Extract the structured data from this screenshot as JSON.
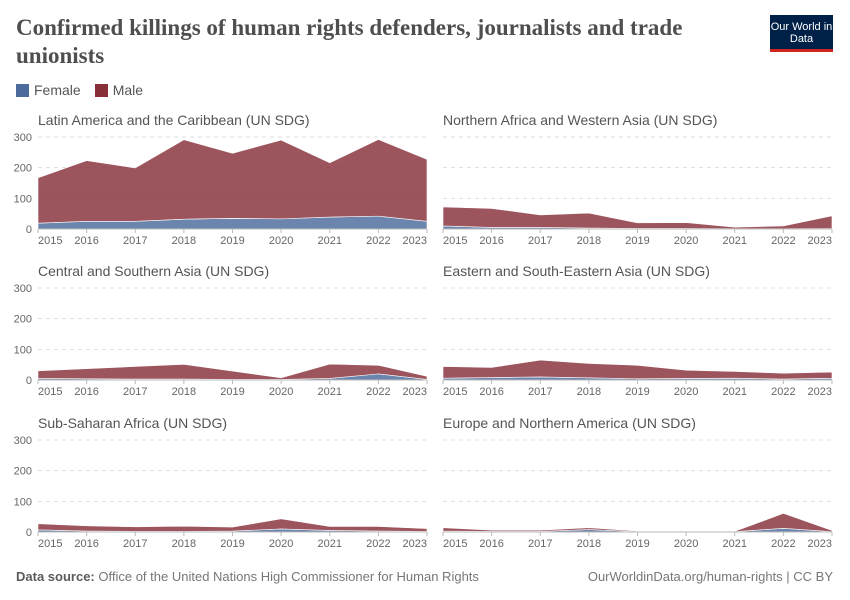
{
  "header": {
    "title": "Confirmed killings of human rights defenders, journalists and trade unionists",
    "logo_text": "Our World in Data"
  },
  "legend": [
    {
      "label": "Female",
      "color": "#4C6A9C"
    },
    {
      "label": "Male",
      "color": "#883039"
    }
  ],
  "footer": {
    "source_label": "Data source:",
    "source": "Office of the United Nations High Commissioner for Human Rights",
    "link": "OurWorldinData.org/human-rights | CC BY"
  },
  "chart_data": {
    "type": "area",
    "stacked": true,
    "x": [
      2015,
      2016,
      2017,
      2018,
      2019,
      2020,
      2021,
      2022,
      2023
    ],
    "ylim": [
      0,
      300
    ],
    "yticks": [
      0,
      100,
      200,
      300
    ],
    "grid": true,
    "legend_position": "top-left",
    "panels": [
      {
        "title": "Latin America and the Caribbean (UN SDG)",
        "series": [
          {
            "name": "Female",
            "values": [
              19,
              25,
              25,
              32,
              35,
              33,
              39,
              42,
              25
            ]
          },
          {
            "name": "Male",
            "values": [
              148,
              198,
              174,
              259,
              212,
              257,
              177,
              250,
              202
            ]
          }
        ]
      },
      {
        "title": "Northern Africa and Western Asia (UN SDG)",
        "series": [
          {
            "name": "Female",
            "values": [
              10,
              5,
              5,
              3,
              2,
              2,
              1,
              1,
              2
            ]
          },
          {
            "name": "Male",
            "values": [
              62,
              62,
              41,
              49,
              18,
              19,
              5,
              9,
              41
            ]
          }
        ]
      },
      {
        "title": "Central and Southern Asia (UN SDG)",
        "series": [
          {
            "name": "Female",
            "values": [
              5,
              4,
              3,
              3,
              2,
              2,
              5,
              20,
              2
            ]
          },
          {
            "name": "Male",
            "values": [
              25,
              33,
              41,
              48,
              27,
              5,
              47,
              28,
              10
            ]
          }
        ]
      },
      {
        "title": "Eastern and South-Eastern Asia (UN SDG)",
        "series": [
          {
            "name": "Female",
            "values": [
              6,
              8,
              10,
              7,
              4,
              5,
              6,
              3,
              6
            ]
          },
          {
            "name": "Male",
            "values": [
              38,
              33,
              55,
              47,
              44,
              27,
              22,
              19,
              20
            ]
          }
        ]
      },
      {
        "title": "Sub-Saharan Africa (UN SDG)",
        "series": [
          {
            "name": "Female",
            "values": [
              7,
              3,
              2,
              2,
              3,
              10,
              5,
              3,
              2
            ]
          },
          {
            "name": "Male",
            "values": [
              20,
              17,
              15,
              17,
              13,
              33,
              13,
              15,
              9
            ]
          }
        ]
      },
      {
        "title": "Europe and Northern America (UN SDG)",
        "series": [
          {
            "name": "Female",
            "values": [
              3,
              2,
              2,
              8,
              1,
              1,
              1,
              12,
              1
            ]
          },
          {
            "name": "Male",
            "values": [
              11,
              4,
              4,
              6,
              2,
              1,
              1,
              49,
              4
            ]
          }
        ]
      }
    ]
  }
}
